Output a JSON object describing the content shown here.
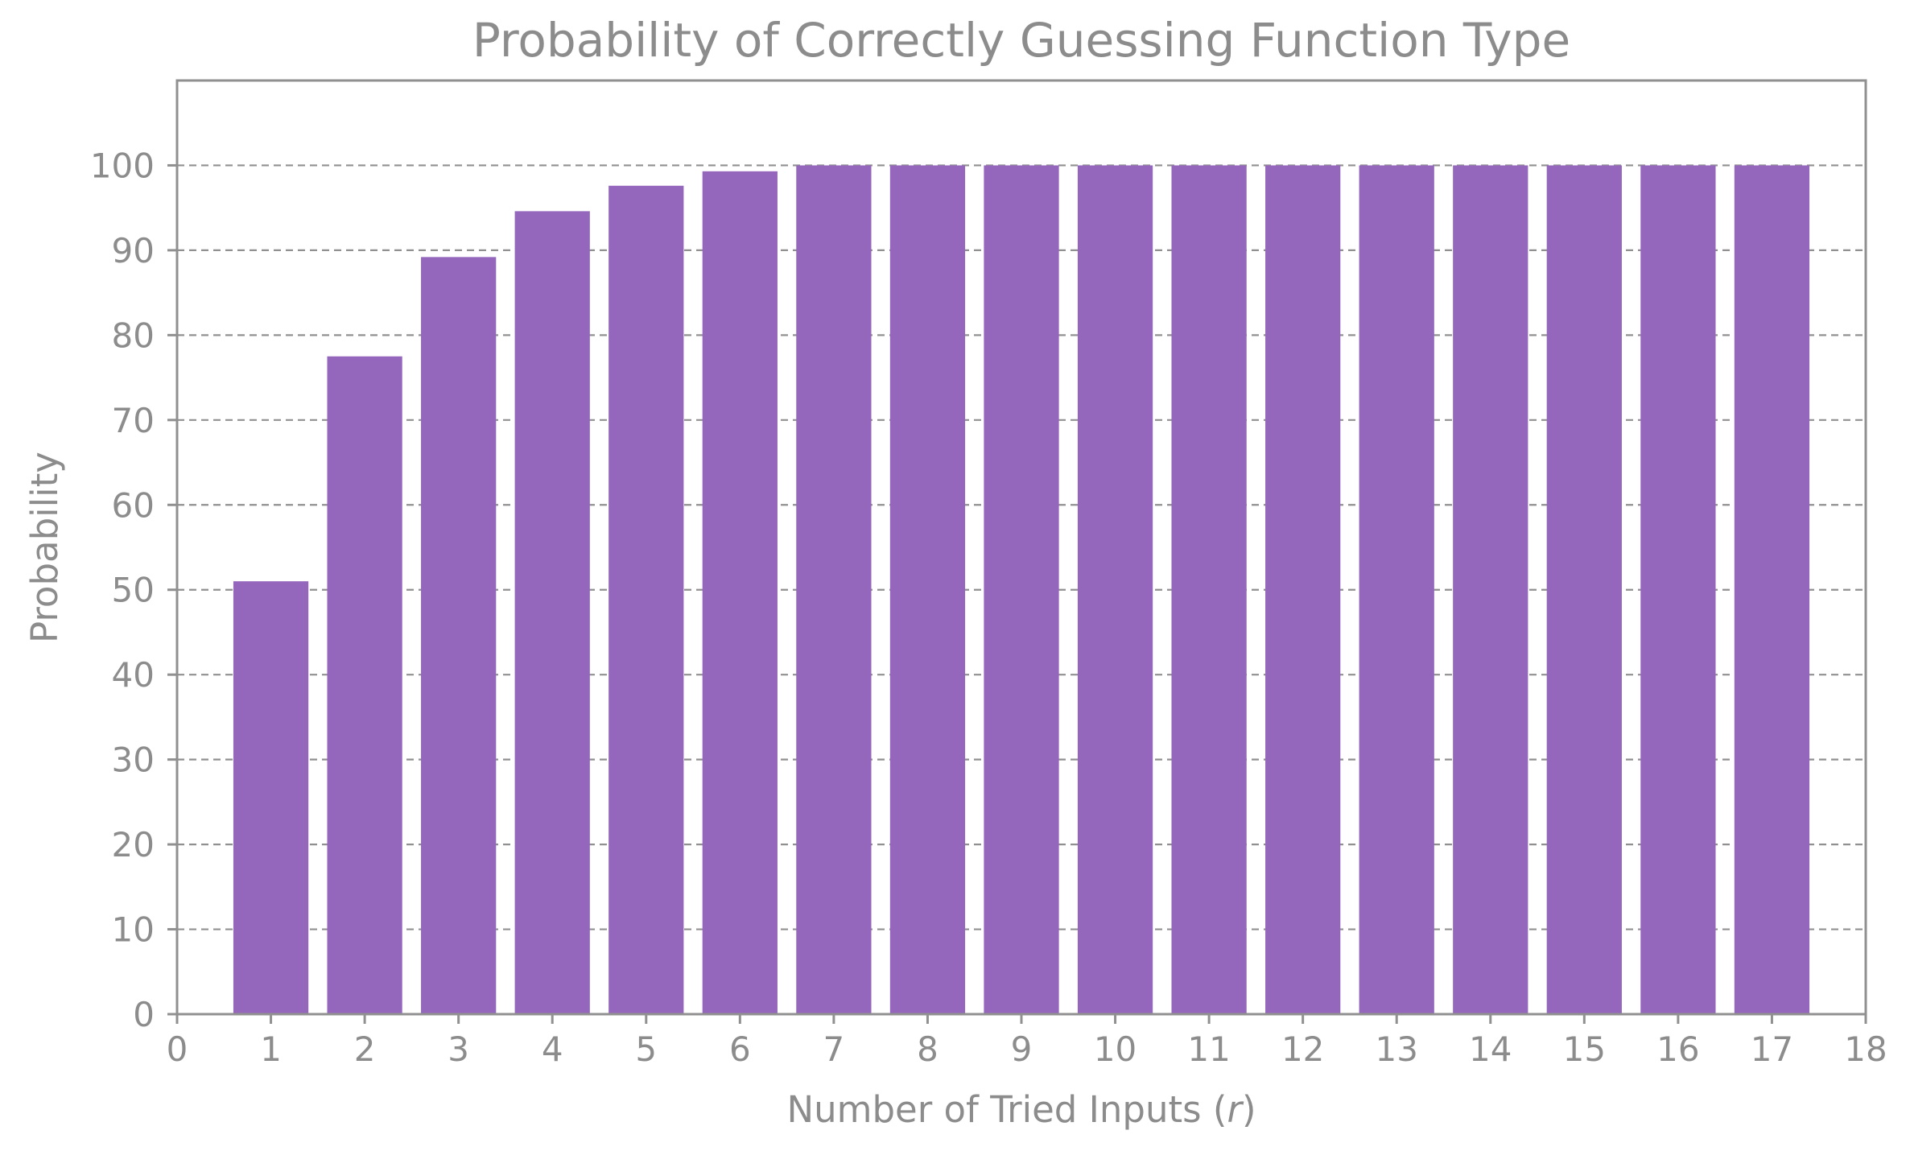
{
  "chart_data": {
    "type": "bar",
    "title": "Probability of Correctly Guessing Function Type",
    "xlabel": "Number of Tried Inputs (",
    "xlabel_var": "r",
    "xlabel_close": ")",
    "ylabel": "Probability",
    "categories": [
      1,
      2,
      3,
      4,
      5,
      6,
      7,
      8,
      9,
      10,
      11,
      12,
      13,
      14,
      15,
      16,
      17
    ],
    "values": [
      51.0,
      77.5,
      89.2,
      94.6,
      97.6,
      99.3,
      100,
      100,
      100,
      100,
      100,
      100,
      100,
      100,
      100,
      100,
      100
    ],
    "xlim": [
      0,
      18
    ],
    "ylim": [
      0,
      110
    ],
    "xticks": [
      "0",
      "1",
      "2",
      "3",
      "4",
      "5",
      "6",
      "7",
      "8",
      "9",
      "10",
      "11",
      "12",
      "13",
      "14",
      "15",
      "16",
      "17",
      "18"
    ],
    "yticks": [
      "0",
      "10",
      "20",
      "30",
      "40",
      "50",
      "60",
      "70",
      "80",
      "90",
      "100"
    ],
    "grid": "y, dashed",
    "bar_color": "#9467bd",
    "text_color": "#8c8c8c",
    "spine_color": "#909090"
  }
}
